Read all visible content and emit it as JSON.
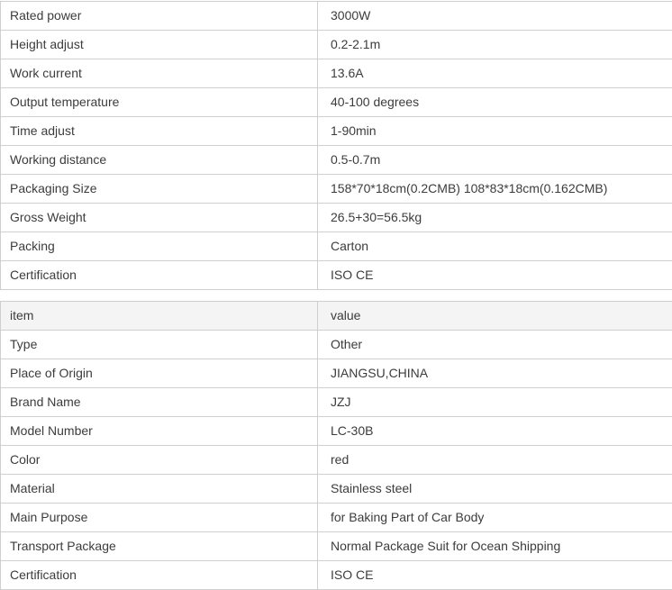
{
  "page": {
    "background_color": "#ffffff",
    "border_color": "#cfcfcf",
    "text_color": "#3c3c3c",
    "header_row_bg_color": "#f4f4f4"
  },
  "spec_table": {
    "rows": [
      {
        "label": "Rated power",
        "value": "3000W"
      },
      {
        "label": "Height adjust",
        "value": "0.2-2.1m"
      },
      {
        "label": "Work current",
        "value": "13.6A"
      },
      {
        "label": "Output temperature",
        "value": "40-100 degrees"
      },
      {
        "label": "Time adjust",
        "value": "1-90min"
      },
      {
        "label": "Working distance",
        "value": "0.5-0.7m"
      },
      {
        "label": "Packaging Size",
        "value": "158*70*18cm(0.2CMB) 108*83*18cm(0.162CMB)"
      },
      {
        "label": "Gross Weight",
        "value": "26.5+30=56.5kg"
      },
      {
        "label": "Packing",
        "value": "Carton"
      },
      {
        "label": "Certification",
        "value": "ISO CE"
      }
    ]
  },
  "info_table": {
    "header": {
      "label": "item",
      "value": "value"
    },
    "rows": [
      {
        "label": "Type",
        "value": "Other"
      },
      {
        "label": "Place of Origin",
        "value": "JIANGSU,CHINA"
      },
      {
        "label": "Brand Name",
        "value": "JZJ"
      },
      {
        "label": "Model Number",
        "value": "LC-30B"
      },
      {
        "label": "Color",
        "value": "red"
      },
      {
        "label": "Material",
        "value": "Stainless steel"
      },
      {
        "label": "Main Purpose",
        "value": "for Baking Part of Car Body"
      },
      {
        "label": "Transport Package",
        "value": "Normal Package Suit for Ocean Shipping"
      },
      {
        "label": "Certification",
        "value": "ISO CE"
      }
    ]
  }
}
